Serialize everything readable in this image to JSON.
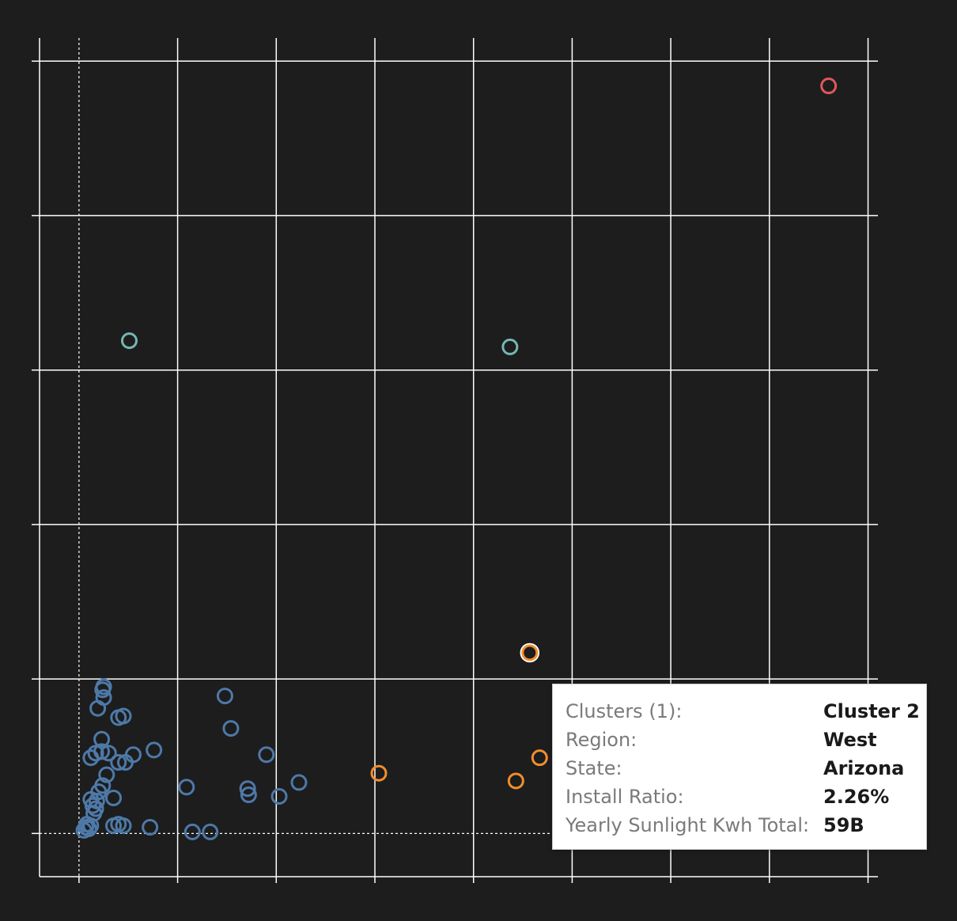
{
  "colors": {
    "background": "#1d1d1e",
    "grid": "#ffffff",
    "cluster_1": "#4e79a7",
    "cluster_2": "#f28e2b",
    "cluster_3": "#76b7b2",
    "cluster_4": "#e15759"
  },
  "chart_data": {
    "type": "scatter",
    "title": "",
    "xlabel": "",
    "ylabel": "",
    "grid": true,
    "xlim": [
      -0.4,
      8.1
    ],
    "ylim": [
      -0.28,
      5.15
    ],
    "series": [
      {
        "color_key": "cluster_1",
        "points": [
          [
            0.05,
            0.02
          ],
          [
            0.07,
            0.04
          ],
          [
            0.1,
            0.03
          ],
          [
            0.08,
            0.06
          ],
          [
            0.12,
            0.05
          ],
          [
            0.15,
            0.13
          ],
          [
            0.17,
            0.16
          ],
          [
            0.18,
            0.21
          ],
          [
            0.12,
            0.22
          ],
          [
            0.14,
            0.18
          ],
          [
            0.35,
            0.05
          ],
          [
            0.4,
            0.06
          ],
          [
            0.45,
            0.05
          ],
          [
            0.72,
            0.04
          ],
          [
            1.15,
            0.01
          ],
          [
            1.33,
            0.01
          ],
          [
            0.2,
            0.27
          ],
          [
            0.24,
            0.31
          ],
          [
            0.35,
            0.23
          ],
          [
            0.28,
            0.38
          ],
          [
            0.4,
            0.46
          ],
          [
            0.47,
            0.46
          ],
          [
            0.23,
            0.53
          ],
          [
            0.3,
            0.52
          ],
          [
            0.12,
            0.49
          ],
          [
            0.17,
            0.52
          ],
          [
            0.55,
            0.51
          ],
          [
            0.76,
            0.54
          ],
          [
            0.23,
            0.61
          ],
          [
            0.4,
            0.75
          ],
          [
            0.45,
            0.76
          ],
          [
            0.19,
            0.81
          ],
          [
            0.25,
            0.88
          ],
          [
            0.25,
            0.95
          ],
          [
            0.24,
            0.93
          ],
          [
            1.09,
            0.3
          ],
          [
            1.71,
            0.29
          ],
          [
            1.72,
            0.25
          ],
          [
            2.03,
            0.24
          ],
          [
            2.23,
            0.33
          ],
          [
            1.48,
            0.89
          ],
          [
            1.54,
            0.68
          ],
          [
            1.9,
            0.51
          ]
        ]
      },
      {
        "color_key": "cluster_2",
        "points": [
          [
            3.04,
            0.39
          ],
          [
            4.43,
            0.34
          ],
          [
            4.67,
            0.49
          ],
          [
            4.57,
            1.17
          ]
        ]
      },
      {
        "color_key": "cluster_3",
        "points": [
          [
            0.51,
            3.19
          ],
          [
            4.37,
            3.15
          ]
        ]
      },
      {
        "color_key": "cluster_4",
        "points": [
          [
            7.6,
            4.84
          ]
        ]
      }
    ],
    "highlighted_point": [
      4.57,
      1.17
    ],
    "reference_lines": {
      "x": 0,
      "y": 0
    }
  },
  "tooltip": {
    "rows": [
      {
        "label": "Clusters (1):",
        "value": "Cluster 2"
      },
      {
        "label": "Region:",
        "value": "West"
      },
      {
        "label": "State:",
        "value": "Arizona"
      },
      {
        "label": "Install Ratio:",
        "value": "2.26%"
      },
      {
        "label": "Yearly Sunlight Kwh Total:",
        "value": "59B"
      }
    ]
  }
}
